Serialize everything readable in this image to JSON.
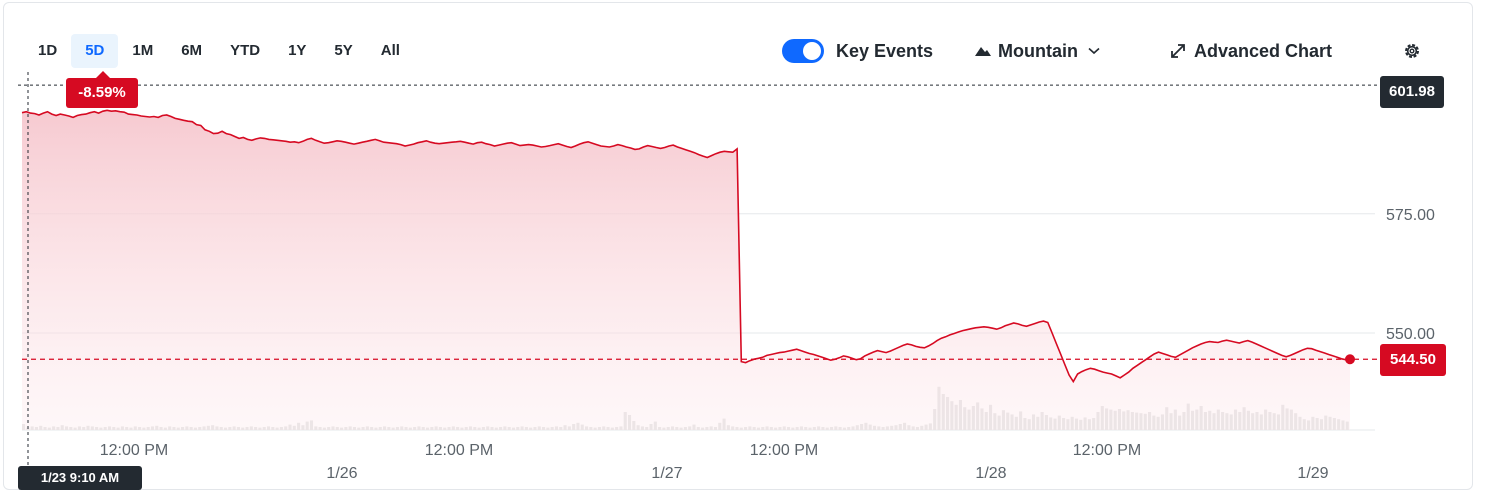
{
  "range_tabs": [
    {
      "label": "1D",
      "active": false
    },
    {
      "label": "5D",
      "active": true
    },
    {
      "label": "1M",
      "active": false
    },
    {
      "label": "6M",
      "active": false
    },
    {
      "label": "YTD",
      "active": false
    },
    {
      "label": "1Y",
      "active": false
    },
    {
      "label": "5Y",
      "active": false
    },
    {
      "label": "All",
      "active": false
    }
  ],
  "controls": {
    "key_events_label": "Key Events",
    "key_events_on": true,
    "chart_type_label": "Mountain",
    "advanced_chart_label": "Advanced Chart",
    "icons": [
      "toggle-icon",
      "mountain-icon",
      "chevron-down-icon",
      "expand-icon",
      "gear-icon"
    ]
  },
  "badges": {
    "change_pct": "-8.59%",
    "high_price": "601.98",
    "last_price": "544.50",
    "cursor_time": "1/23 9:10 AM"
  },
  "colors": {
    "line": "#d60a22",
    "fill": "#f9d3d8",
    "accent": "#0f69ff",
    "dark_badge": "#232a31",
    "volume": "#e3e3e3"
  },
  "chart_data": {
    "type": "area",
    "y_ticks": [
      "575.00",
      "550.00"
    ],
    "ylim": [
      534,
      605
    ],
    "x_tick_labels": [
      "12:00 PM",
      "1/26",
      "12:00 PM",
      "1/27",
      "12:00 PM",
      "1/28",
      "12:00 PM",
      "1/29"
    ],
    "reference_lines": {
      "high": 601.98,
      "last": 544.5
    },
    "series": [
      {
        "values": [
          596.2,
          596.4,
          596.1,
          596.0,
          595.7,
          596.1,
          596.4,
          595.9,
          595.6,
          595.9,
          595.7,
          595.5,
          595.2,
          595.6,
          595.8,
          595.9,
          596.2,
          596.4,
          596.1,
          596.5,
          596.7,
          596.5,
          596.6,
          596.4,
          596.3,
          595.9,
          595.8,
          595.7,
          595.5,
          595.4,
          595.3,
          595.4,
          595.2,
          595.6,
          595.7,
          595.4,
          595.0,
          594.8,
          594.6,
          594.4,
          594.3,
          593.7,
          593.5,
          592.6,
          592.3,
          591.8,
          591.9,
          592.3,
          591.8,
          591.6,
          591.2,
          590.8,
          591.0,
          590.6,
          590.4,
          590.7,
          590.9,
          590.8,
          590.6,
          590.5,
          590.4,
          590.3,
          590.2,
          590.0,
          590.1,
          589.9,
          590.2,
          590.6,
          590.8,
          590.4,
          590.1,
          589.8,
          589.9,
          590.1,
          590.3,
          590.2,
          590.0,
          589.8,
          589.6,
          589.8,
          590.0,
          590.2,
          590.4,
          590.6,
          590.3,
          590.0,
          589.9,
          589.8,
          589.7,
          589.5,
          589.2,
          589.4,
          589.6,
          589.9,
          590.1,
          590.3,
          590.0,
          589.8,
          589.7,
          589.8,
          589.9,
          590.0,
          590.1,
          590.2,
          590.0,
          589.8,
          589.6,
          589.9,
          590.0,
          589.7,
          589.5,
          589.2,
          589.4,
          589.6,
          589.8,
          589.9,
          589.6,
          589.3,
          589.4,
          589.5,
          589.4,
          589.2,
          589.0,
          589.1,
          589.3,
          589.5,
          589.7,
          589.4,
          589.1,
          588.9,
          589.2,
          589.6,
          589.9,
          590.1,
          589.8,
          589.5,
          589.2,
          589.1,
          589.0,
          589.2,
          589.5,
          589.3,
          589.0,
          588.8,
          588.5,
          588.6,
          589.0,
          589.3,
          589.1,
          588.9,
          588.7,
          588.9,
          589.2,
          589.4,
          589.0,
          588.7,
          588.4,
          588.1,
          587.8,
          587.4,
          587.1,
          586.8,
          587.2,
          587.6,
          587.9,
          588.1,
          588.0,
          587.9,
          588.6,
          544.0,
          543.8,
          544.2,
          544.5,
          544.7,
          544.9,
          545.3,
          545.5,
          545.7,
          545.9,
          546.0,
          546.2,
          546.4,
          546.6,
          546.3,
          546.0,
          545.7,
          545.5,
          545.2,
          544.9,
          544.6,
          544.3,
          544.5,
          544.8,
          545.2,
          545.0,
          544.7,
          544.4,
          544.6,
          545.2,
          545.6,
          546.0,
          546.3,
          546.1,
          545.9,
          546.2,
          546.6,
          547.0,
          547.4,
          547.7,
          547.5,
          547.2,
          547.0,
          546.9,
          547.3,
          547.8,
          548.4,
          548.9,
          549.2,
          549.6,
          549.9,
          550.2,
          550.5,
          550.7,
          550.9,
          551.1,
          551.2,
          551.3,
          551.2,
          551.0,
          550.8,
          551.1,
          551.5,
          551.8,
          552.1,
          551.9,
          551.6,
          551.4,
          551.7,
          552.0,
          552.3,
          552.5,
          552.2,
          550.0,
          547.8,
          545.6,
          543.4,
          541.2,
          539.8,
          541.4,
          541.9,
          542.3,
          542.6,
          542.4,
          542.1,
          541.8,
          541.6,
          541.4,
          541.0,
          540.6,
          541.2,
          541.8,
          542.6,
          543.2,
          543.8,
          544.4,
          545.0,
          545.6,
          546.0,
          545.7,
          545.4,
          545.1,
          544.9,
          545.4,
          545.9,
          546.4,
          546.9,
          547.3,
          547.7,
          548.0,
          548.2,
          548.1,
          548.0,
          548.3,
          548.5,
          548.3,
          548.1,
          547.9,
          548.2,
          548.4,
          548.1,
          547.7,
          547.3,
          546.9,
          546.5,
          546.1,
          545.7,
          545.3,
          545.0,
          545.3,
          545.7,
          546.1,
          546.5,
          546.8,
          546.7,
          546.4,
          546.1,
          545.8,
          545.5,
          545.2,
          544.9,
          544.6,
          544.4,
          544.5
        ]
      }
    ],
    "volume": [
      0.1,
      0.04,
      0.06,
      0.05,
      0.07,
      0.05,
      0.04,
      0.06,
      0.05,
      0.08,
      0.06,
      0.05,
      0.04,
      0.06,
      0.05,
      0.07,
      0.06,
      0.05,
      0.04,
      0.05,
      0.06,
      0.05,
      0.04,
      0.06,
      0.05,
      0.04,
      0.06,
      0.05,
      0.04,
      0.05,
      0.06,
      0.07,
      0.05,
      0.04,
      0.06,
      0.05,
      0.04,
      0.05,
      0.06,
      0.05,
      0.04,
      0.05,
      0.06,
      0.07,
      0.08,
      0.06,
      0.05,
      0.04,
      0.05,
      0.06,
      0.05,
      0.04,
      0.05,
      0.06,
      0.05,
      0.04,
      0.05,
      0.06,
      0.05,
      0.04,
      0.05,
      0.06,
      0.09,
      0.07,
      0.12,
      0.08,
      0.14,
      0.16,
      0.06,
      0.05,
      0.04,
      0.05,
      0.06,
      0.05,
      0.04,
      0.05,
      0.06,
      0.05,
      0.04,
      0.05,
      0.06,
      0.05,
      0.04,
      0.05,
      0.06,
      0.05,
      0.04,
      0.05,
      0.06,
      0.05,
      0.04,
      0.05,
      0.06,
      0.05,
      0.04,
      0.05,
      0.06,
      0.05,
      0.04,
      0.05,
      0.06,
      0.05,
      0.04,
      0.05,
      0.06,
      0.05,
      0.04,
      0.05,
      0.06,
      0.05,
      0.04,
      0.05,
      0.06,
      0.05,
      0.04,
      0.05,
      0.06,
      0.05,
      0.04,
      0.05,
      0.06,
      0.05,
      0.04,
      0.05,
      0.06,
      0.05,
      0.08,
      0.06,
      0.1,
      0.12,
      0.09,
      0.06,
      0.05,
      0.04,
      0.05,
      0.06,
      0.05,
      0.04,
      0.05,
      0.06,
      0.3,
      0.25,
      0.15,
      0.08,
      0.06,
      0.05,
      0.1,
      0.14,
      0.05,
      0.04,
      0.05,
      0.06,
      0.05,
      0.04,
      0.05,
      0.06,
      0.09,
      0.05,
      0.04,
      0.05,
      0.06,
      0.05,
      0.12,
      0.19,
      0.08,
      0.06,
      0.05,
      0.04,
      0.05,
      0.06,
      0.05,
      0.04,
      0.05,
      0.06,
      0.05,
      0.04,
      0.05,
      0.06,
      0.05,
      0.04,
      0.05,
      0.06,
      0.05,
      0.04,
      0.05,
      0.06,
      0.05,
      0.04,
      0.05,
      0.06,
      0.05,
      0.04,
      0.05,
      0.06,
      0.08,
      0.1,
      0.12,
      0.09,
      0.07,
      0.06,
      0.05,
      0.06,
      0.07,
      0.08,
      0.1,
      0.12,
      0.08,
      0.06,
      0.05,
      0.07,
      0.09,
      0.11,
      0.35,
      0.72,
      0.6,
      0.55,
      0.48,
      0.42,
      0.5,
      0.38,
      0.34,
      0.4,
      0.46,
      0.36,
      0.3,
      0.42,
      0.28,
      0.24,
      0.33,
      0.29,
      0.26,
      0.22,
      0.31,
      0.2,
      0.18,
      0.26,
      0.22,
      0.3,
      0.25,
      0.21,
      0.19,
      0.24,
      0.2,
      0.18,
      0.22,
      0.19,
      0.17,
      0.21,
      0.18,
      0.2,
      0.3,
      0.4,
      0.36,
      0.34,
      0.32,
      0.35,
      0.31,
      0.33,
      0.3,
      0.29,
      0.28,
      0.27,
      0.3,
      0.24,
      0.22,
      0.26,
      0.38,
      0.28,
      0.34,
      0.24,
      0.3,
      0.44,
      0.32,
      0.34,
      0.4,
      0.3,
      0.32,
      0.28,
      0.34,
      0.3,
      0.28,
      0.26,
      0.34,
      0.3,
      0.38,
      0.32,
      0.28,
      0.3,
      0.26,
      0.34,
      0.3,
      0.28,
      0.26,
      0.42,
      0.36,
      0.34,
      0.28,
      0.22,
      0.18,
      0.16,
      0.22,
      0.2,
      0.18,
      0.24,
      0.22,
      0.2,
      0.18,
      0.16,
      0.14
    ]
  }
}
